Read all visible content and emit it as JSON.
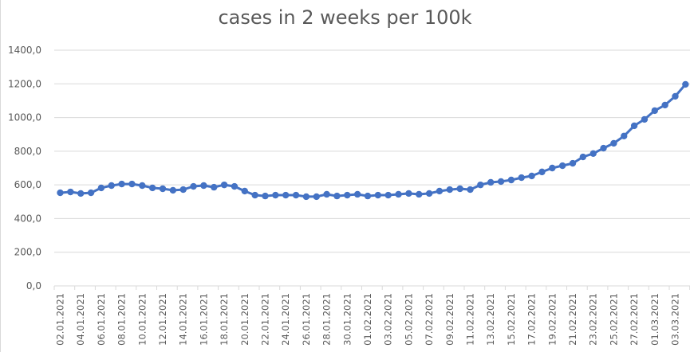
{
  "chart_data": {
    "type": "line",
    "title": "cases in 2 weeks per 100k",
    "xlabel": "",
    "ylabel": "",
    "ylim": [
      0,
      1400
    ],
    "yticks": [
      "0,0",
      "200,0",
      "400,0",
      "600,0",
      "800,0",
      "1000,0",
      "1200,0",
      "1400,0"
    ],
    "ytick_values": [
      0,
      200,
      400,
      600,
      800,
      1000,
      1200,
      1400
    ],
    "grid": true,
    "legend": "none",
    "series_color": "#4472C4",
    "x": [
      "02.01.2021",
      "03.01.2021",
      "04.01.2021",
      "05.01.2021",
      "06.01.2021",
      "07.01.2021",
      "08.01.2021",
      "09.01.2021",
      "10.01.2021",
      "11.01.2021",
      "12.01.2021",
      "13.01.2021",
      "14.01.2021",
      "15.01.2021",
      "16.01.2021",
      "17.01.2021",
      "18.01.2021",
      "19.01.2021",
      "20.01.2021",
      "21.01.2021",
      "22.01.2021",
      "23.01.2021",
      "24.01.2021",
      "25.01.2021",
      "26.01.2021",
      "27.01.2021",
      "28.01.2021",
      "29.01.2021",
      "30.01.2021",
      "31.01.2021",
      "01.02.2021",
      "02.02.2021",
      "03.02.2021",
      "04.02.2021",
      "05.02.2021",
      "06.02.2021",
      "07.02.2021",
      "08.02.2021",
      "09.02.2021",
      "10.02.2021",
      "11.02.2021",
      "12.02.2021",
      "13.02.2021",
      "14.02.2021",
      "15.02.2021",
      "16.02.2021",
      "17.02.2021",
      "18.02.2021",
      "19.02.2021",
      "20.02.2021",
      "21.02.2021",
      "22.02.2021",
      "23.02.2021",
      "24.02.2021",
      "25.02.2021",
      "26.02.2021",
      "27.02.2021",
      "28.02.2021",
      "01.03.2021",
      "02.03.2021",
      "03.03.2021",
      "04.03.2021"
    ],
    "xtick_labels": [
      "02.01.2021",
      "04.01.2021",
      "06.01.2021",
      "08.01.2021",
      "10.01.2021",
      "12.01.2021",
      "14.01.2021",
      "16.01.2021",
      "18.01.2021",
      "20.01.2021",
      "22.01.2021",
      "24.01.2021",
      "26.01.2021",
      "28.01.2021",
      "30.01.2021",
      "01.02.2021",
      "03.02.2021",
      "05.02.2021",
      "07.02.2021",
      "09.02.2021",
      "11.02.2021",
      "13.02.2021",
      "15.02.2021",
      "17.02.2021",
      "19.02.2021",
      "21.02.2021",
      "23.02.2021",
      "25.02.2021",
      "27.02.2021",
      "01.03.2021",
      "03.03.2021"
    ],
    "series": [
      {
        "name": "cases in 2 weeks per 100k",
        "values": [
          553,
          558,
          549,
          553,
          582,
          596,
          605,
          605,
          596,
          582,
          577,
          568,
          572,
          591,
          596,
          586,
          600,
          591,
          563,
          539,
          534,
          539,
          539,
          539,
          530,
          530,
          544,
          534,
          539,
          544,
          534,
          539,
          539,
          544,
          549,
          544,
          549,
          563,
          572,
          577,
          572,
          600,
          615,
          620,
          629,
          643,
          653,
          677,
          700,
          714,
          728,
          766,
          786,
          818,
          847,
          890,
          951,
          989,
          1041,
          1074,
          1126,
          1197
        ]
      }
    ]
  }
}
